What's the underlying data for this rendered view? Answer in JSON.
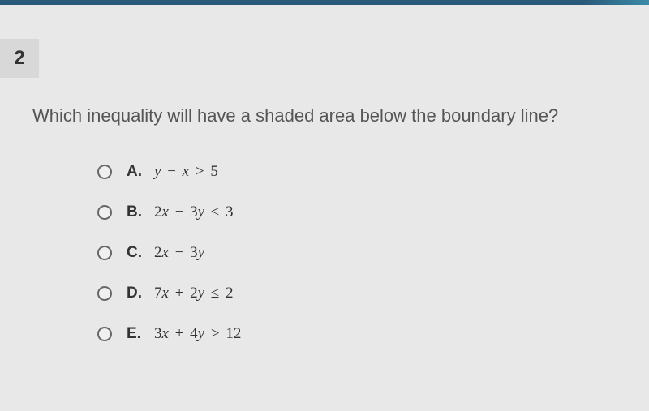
{
  "colors": {
    "background": "#e8e8e8",
    "top_bar_primary": "#2a5a7a",
    "top_bar_accent": "#3a8aa8",
    "number_box_bg": "#d8d8d8",
    "text_primary": "#555",
    "text_option": "#333",
    "radio_border": "#666",
    "divider": "#ccc"
  },
  "typography": {
    "question_fontsize": 22,
    "option_fontsize": 19,
    "number_fontsize": 24
  },
  "question_number": "2",
  "question_text": "Which inequality will have a shaded area below the boundary line?",
  "options": [
    {
      "letter": "A.",
      "expression_html": "y <span class='op'>−</span> x <span class='op'>&gt;</span> <span class='num'>5</span>"
    },
    {
      "letter": "B.",
      "expression_html": "<span class='num'>2</span>x <span class='op'>−</span> <span class='num'>3</span>y <span class='op'>≤</span> <span class='num'>3</span>"
    },
    {
      "letter": "C.",
      "expression_html": "<span class='num'>2</span>x <span class='op'>−</span> <span class='num'>3</span>y"
    },
    {
      "letter": "D.",
      "expression_html": "<span class='num'>7</span>x <span class='op'>+</span> <span class='num'>2</span>y <span class='op'>≤</span> <span class='num'>2</span>"
    },
    {
      "letter": "E.",
      "expression_html": "<span class='num'>3</span>x <span class='op'>+</span> <span class='num'>4</span>y <span class='op'>&gt;</span> <span class='num'>12</span>"
    }
  ]
}
